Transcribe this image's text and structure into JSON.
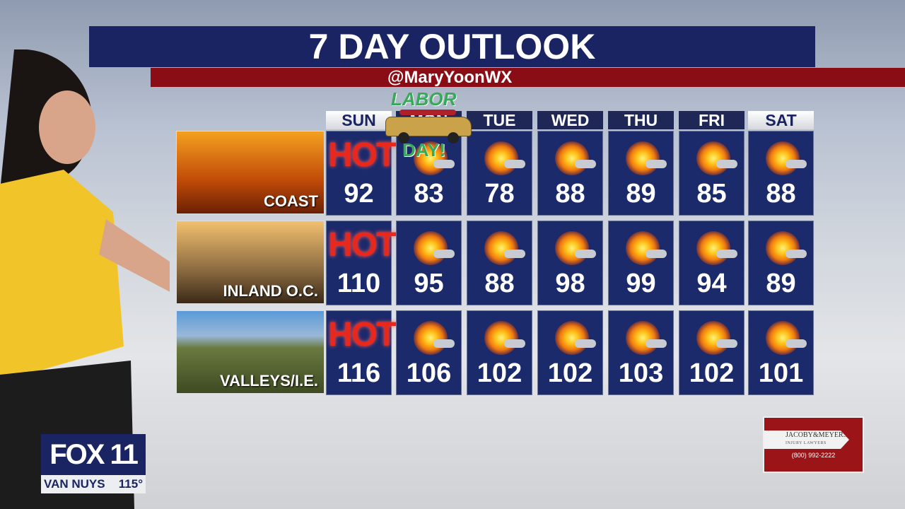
{
  "title": "7 DAY OUTLOOK",
  "handle": "@MaryYoonWX",
  "days": [
    "SUN",
    "MON",
    "TUE",
    "WED",
    "THU",
    "FRI",
    "SAT"
  ],
  "highlighted_days": [
    "SUN",
    "SAT"
  ],
  "overlay": {
    "top": "LABOR",
    "bottom": "DAY!"
  },
  "hot_label": "HOT",
  "rows": [
    {
      "region": "COAST",
      "temps": [
        "92",
        "83",
        "78",
        "88",
        "89",
        "85",
        "88"
      ],
      "icons": [
        "hot",
        "sun-cloud",
        "sun-cloud",
        "sun-cloud",
        "sun-cloud",
        "sun-cloud",
        "sun-cloud"
      ]
    },
    {
      "region": "INLAND O.C.",
      "temps": [
        "110",
        "95",
        "88",
        "98",
        "99",
        "94",
        "89"
      ],
      "icons": [
        "hot",
        "sun-cloud",
        "sun-cloud",
        "sun-cloud",
        "sun-cloud",
        "sun-cloud",
        "sun-cloud"
      ]
    },
    {
      "region": "VALLEYS/I.E.",
      "temps": [
        "116",
        "106",
        "102",
        "102",
        "103",
        "102",
        "101"
      ],
      "icons": [
        "hot",
        "sun-cloud",
        "sun-cloud",
        "sun-cloud",
        "sun-cloud",
        "sun-cloud",
        "sun-cloud"
      ]
    }
  ],
  "station": {
    "logo": "FOX 11",
    "location": "VAN NUYS",
    "temp": "115°"
  },
  "ad": {
    "brand": "JACOBY&MEYERS",
    "sub": "INJURY LAWYERS",
    "phone": "(800) 992-2222"
  }
}
